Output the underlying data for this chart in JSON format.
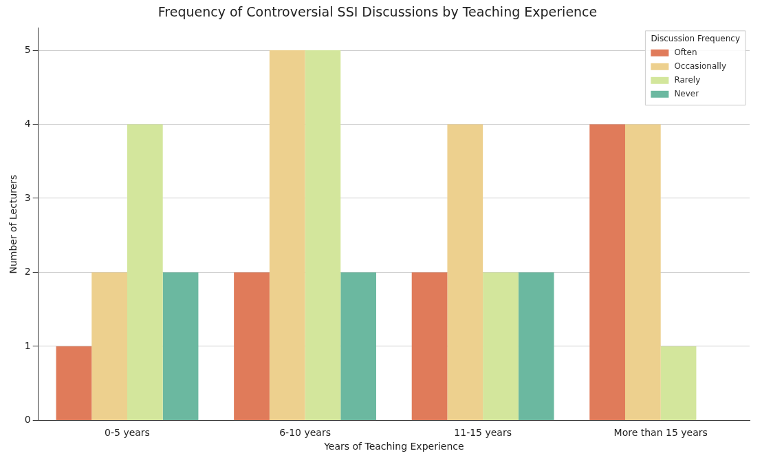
{
  "chart_data": {
    "type": "bar",
    "title": "Frequency of Controversial SSI Discussions by Teaching Experience",
    "xlabel": "Years of Teaching Experience",
    "ylabel": "Number of Lecturers",
    "legend_title": "Discussion Frequency",
    "categories": [
      "0-5 years",
      "6-10 years",
      "11-15 years",
      "More than 15 years"
    ],
    "series": [
      {
        "name": "Often",
        "color": "#e07b5a",
        "values": [
          1,
          2,
          2,
          4
        ]
      },
      {
        "name": "Occasionally",
        "color": "#edd08e",
        "values": [
          2,
          5,
          4,
          4
        ]
      },
      {
        "name": "Rarely",
        "color": "#d3e69c",
        "values": [
          4,
          5,
          2,
          1
        ]
      },
      {
        "name": "Never",
        "color": "#6bb8a0",
        "values": [
          2,
          2,
          2,
          0
        ]
      }
    ],
    "ylim": [
      0,
      5.3
    ],
    "yticks": [
      0,
      1,
      2,
      3,
      4,
      5
    ],
    "grid": "y",
    "legend": "top right"
  }
}
